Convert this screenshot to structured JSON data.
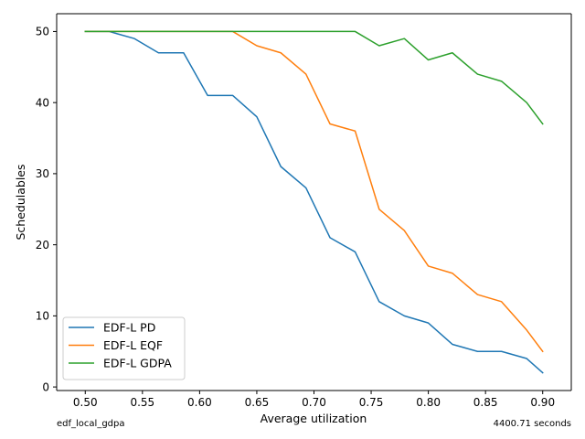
{
  "chart_data": {
    "type": "line",
    "xlabel": "Average utilization",
    "ylabel": "Schedulables",
    "xlim": [
      0.475,
      0.925
    ],
    "ylim": [
      -0.5,
      52.5
    ],
    "xticks": [
      0.5,
      0.55,
      0.6,
      0.65,
      0.7,
      0.75,
      0.8,
      0.85,
      0.9
    ],
    "xtick_labels": [
      "0.50",
      "0.55",
      "0.60",
      "0.65",
      "0.70",
      "0.75",
      "0.80",
      "0.85",
      "0.90"
    ],
    "yticks": [
      0,
      10,
      20,
      30,
      40,
      50
    ],
    "ytick_labels": [
      "0",
      "10",
      "20",
      "30",
      "40",
      "50"
    ],
    "grid": false,
    "legend_position": "lower-left",
    "x": [
      0.5,
      0.521,
      0.543,
      0.564,
      0.586,
      0.607,
      0.629,
      0.65,
      0.671,
      0.693,
      0.714,
      0.736,
      0.757,
      0.779,
      0.8,
      0.821,
      0.843,
      0.864,
      0.886,
      0.9
    ],
    "series": [
      {
        "name": "EDF-L PD",
        "color": "#1f77b4",
        "values": [
          50,
          50,
          49,
          47,
          47,
          41,
          41,
          38,
          31,
          28,
          21,
          19,
          12,
          10,
          9,
          6,
          5,
          5,
          4,
          2
        ]
      },
      {
        "name": "EDF-L EQF",
        "color": "#ff7f0e",
        "values": [
          50,
          50,
          50,
          50,
          50,
          50,
          50,
          48,
          47,
          44,
          37,
          36,
          25,
          22,
          17,
          16,
          13,
          12,
          8,
          5
        ]
      },
      {
        "name": "EDF-L GDPA",
        "color": "#2ca02c",
        "values": [
          50,
          50,
          50,
          50,
          50,
          50,
          50,
          50,
          50,
          50,
          50,
          50,
          48,
          49,
          46,
          47,
          44,
          43,
          40,
          37
        ]
      }
    ],
    "footer_left": "edf_local_gdpa",
    "footer_right": "4400.71 seconds"
  }
}
